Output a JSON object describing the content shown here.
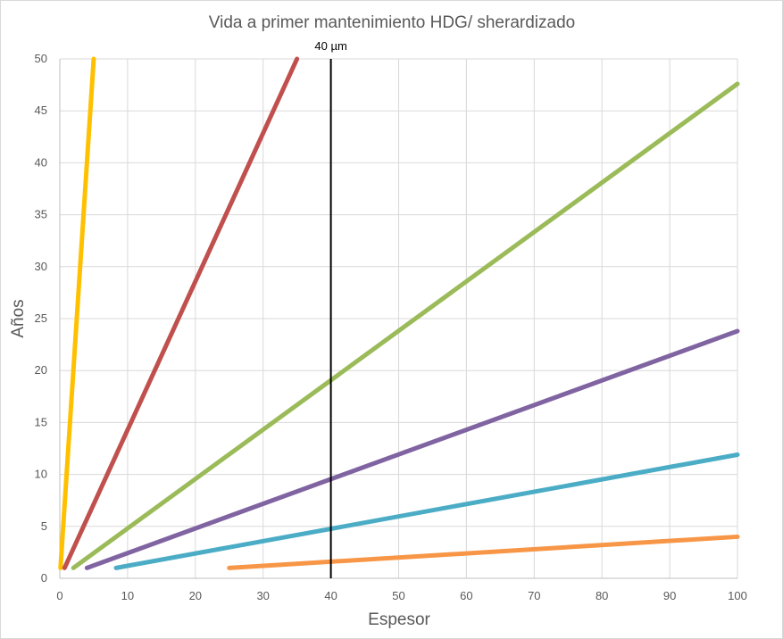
{
  "chart_data": {
    "type": "line",
    "title": "Vida a primer mantenimiento HDG/ sherardizado",
    "xlabel": "Espesor",
    "ylabel": "Años",
    "xlim": [
      0,
      100
    ],
    "ylim": [
      0,
      50
    ],
    "x_ticks": [
      0,
      10,
      20,
      30,
      40,
      50,
      60,
      70,
      80,
      90,
      100
    ],
    "y_ticks": [
      0,
      5,
      10,
      15,
      20,
      25,
      30,
      35,
      40,
      45,
      50
    ],
    "grid": true,
    "legend": "none",
    "series": [
      {
        "color": "#FFC000",
        "points": [
          [
            0.1,
            1
          ],
          [
            5,
            50
          ]
        ]
      },
      {
        "color": "#C0504D",
        "points": [
          [
            0.7,
            1
          ],
          [
            35,
            50
          ]
        ]
      },
      {
        "color": "#9BBB59",
        "points": [
          [
            2,
            1
          ],
          [
            100,
            47.6
          ]
        ]
      },
      {
        "color": "#8064A2",
        "points": [
          [
            4,
            1
          ],
          [
            100,
            23.8
          ]
        ]
      },
      {
        "color": "#4BACC6",
        "points": [
          [
            8.3,
            1
          ],
          [
            100,
            11.9
          ]
        ]
      },
      {
        "color": "#F79646",
        "points": [
          [
            25,
            1
          ],
          [
            100,
            4
          ]
        ]
      }
    ],
    "reference_line": {
      "x": 40,
      "label": "40 µm",
      "color": "#000000"
    }
  }
}
